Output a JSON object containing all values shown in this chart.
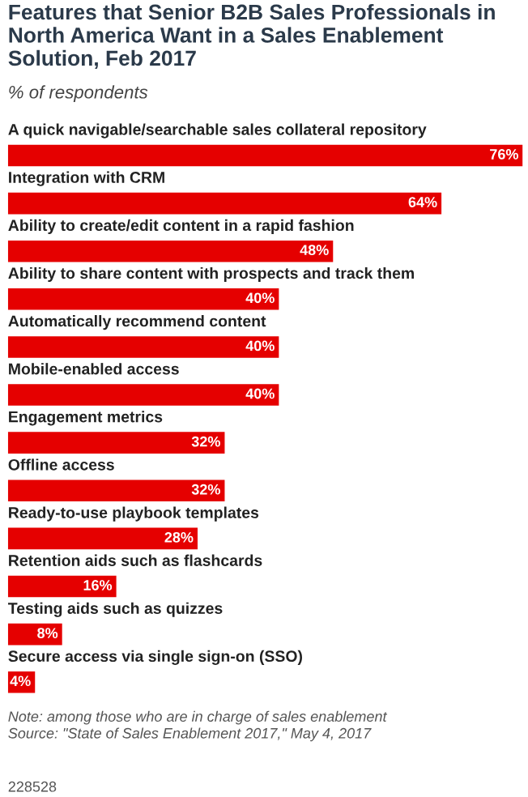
{
  "chart_data": {
    "type": "bar",
    "orientation": "horizontal",
    "title": "Features that Senior B2B Sales Professionals in North America Want in a Sales Enablement Solution, Feb 2017",
    "subtitle": "% of respondents",
    "categories": [
      "A quick navigable/searchable sales collateral repository",
      "Integration with CRM",
      "Ability to create/edit content in a rapid fashion",
      "Ability to share content with prospects and track them",
      "Automatically recommend content",
      "Mobile-enabled access",
      "Engagement metrics",
      "Offline access",
      "Ready-to-use playbook templates",
      "Retention aids such as flashcards",
      "Testing aids such as quizzes",
      "Secure access via single sign-on (SSO)"
    ],
    "values": [
      76,
      64,
      48,
      40,
      40,
      40,
      32,
      32,
      28,
      16,
      8,
      4
    ],
    "value_labels": [
      "76%",
      "64%",
      "48%",
      "40%",
      "40%",
      "40%",
      "32%",
      "32%",
      "28%",
      "16%",
      "8%",
      "4%"
    ],
    "color": "#e50000",
    "annotations": [
      "Note: among those who are in charge of sales enablement",
      "Source: \"State of Sales Enablement 2017,\" May 4, 2017",
      "228528"
    ]
  }
}
